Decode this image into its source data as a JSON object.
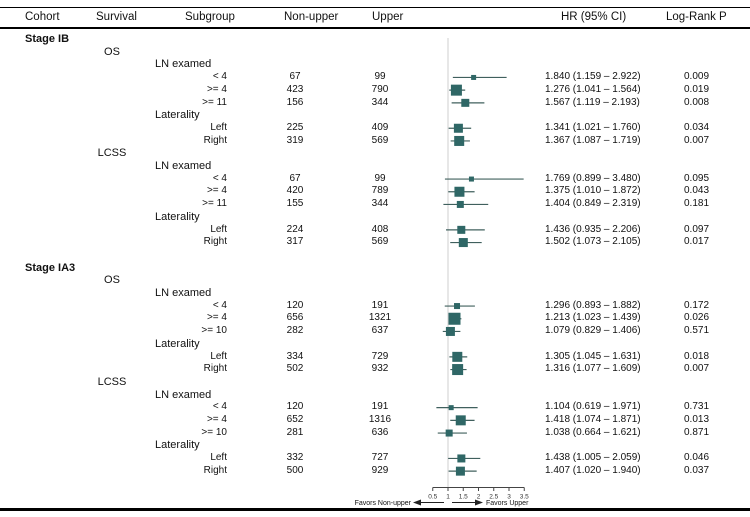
{
  "header": {
    "cohort": "Cohort",
    "survival": "Survival",
    "subgroup": "Subgroup",
    "non_upper": "Non-upper",
    "upper": "Upper",
    "hr_ci": "HR (95% CI)",
    "log_rank_p": "Log-Rank P"
  },
  "axis": {
    "ticks": [
      0.5,
      1,
      1.5,
      2,
      2.5,
      3,
      3.5
    ],
    "tick_labels": [
      "0.5",
      "1",
      "1.5",
      "2",
      "2.5",
      "3",
      "3.5"
    ],
    "favors_left": "Favors Non-upper",
    "favors_right": "Favors Upper"
  },
  "colors": {
    "marker": "#2f6766",
    "whisker": "#40605e",
    "refline": "#cfcfcf",
    "axis": "#444444"
  },
  "chart_data": {
    "type": "forest",
    "xlim": [
      0.5,
      3.5
    ],
    "ref_line": 1.0,
    "xlabel_left": "Favors Non-upper",
    "xlabel_right": "Favors Upper",
    "rows": [
      {
        "t": "cohort",
        "label": "Stage IB"
      },
      {
        "t": "survival",
        "label": "OS"
      },
      {
        "t": "group",
        "label": "LN examed"
      },
      {
        "t": "item",
        "label": "< 4",
        "non_upper": "67",
        "upper": "99",
        "hr": 1.84,
        "lo": 1.159,
        "hi": 2.922,
        "hr_text": "1.840 (1.159 – 2.922)",
        "p": "0.009",
        "size": 5
      },
      {
        "t": "item",
        "label": ">= 4",
        "non_upper": "423",
        "upper": "790",
        "hr": 1.276,
        "lo": 1.041,
        "hi": 1.564,
        "hr_text": "1.276 (1.041 – 1.564)",
        "p": "0.019",
        "size": 11
      },
      {
        "t": "item",
        "label": ">= 11",
        "non_upper": "156",
        "upper": "344",
        "hr": 1.567,
        "lo": 1.119,
        "hi": 2.193,
        "hr_text": "1.567 (1.119 – 2.193)",
        "p": "0.008",
        "size": 8
      },
      {
        "t": "group",
        "label": "Laterality"
      },
      {
        "t": "item",
        "label": "Left",
        "non_upper": "225",
        "upper": "409",
        "hr": 1.341,
        "lo": 1.021,
        "hi": 1.76,
        "hr_text": "1.341 (1.021 – 1.760)",
        "p": "0.034",
        "size": 9
      },
      {
        "t": "item",
        "label": "Right",
        "non_upper": "319",
        "upper": "569",
        "hr": 1.367,
        "lo": 1.087,
        "hi": 1.719,
        "hr_text": "1.367 (1.087 – 1.719)",
        "p": "0.007",
        "size": 10
      },
      {
        "t": "survival",
        "label": "LCSS"
      },
      {
        "t": "group",
        "label": "LN examed"
      },
      {
        "t": "item",
        "label": "< 4",
        "non_upper": "67",
        "upper": "99",
        "hr": 1.769,
        "lo": 0.899,
        "hi": 3.48,
        "hr_text": "1.769 (0.899 – 3.480)",
        "p": "0.095",
        "size": 5
      },
      {
        "t": "item",
        "label": ">= 4",
        "non_upper": "420",
        "upper": "789",
        "hr": 1.375,
        "lo": 1.01,
        "hi": 1.872,
        "hr_text": "1.375 (1.010 – 1.872)",
        "p": "0.043",
        "size": 10
      },
      {
        "t": "item",
        "label": ">= 11",
        "non_upper": "155",
        "upper": "344",
        "hr": 1.404,
        "lo": 0.849,
        "hi": 2.319,
        "hr_text": "1.404 (0.849 – 2.319)",
        "p": "0.181",
        "size": 7
      },
      {
        "t": "group",
        "label": "Laterality"
      },
      {
        "t": "item",
        "label": "Left",
        "non_upper": "224",
        "upper": "408",
        "hr": 1.436,
        "lo": 0.935,
        "hi": 2.206,
        "hr_text": "1.436 (0.935 – 2.206)",
        "p": "0.097",
        "size": 8
      },
      {
        "t": "item",
        "label": "Right",
        "non_upper": "317",
        "upper": "569",
        "hr": 1.502,
        "lo": 1.073,
        "hi": 2.105,
        "hr_text": "1.502 (1.073 – 2.105)",
        "p": "0.017",
        "size": 9
      },
      {
        "t": "spacer"
      },
      {
        "t": "cohort",
        "label": "Stage IA3"
      },
      {
        "t": "survival",
        "label": "OS"
      },
      {
        "t": "group",
        "label": "LN examed"
      },
      {
        "t": "item",
        "label": "< 4",
        "non_upper": "120",
        "upper": "191",
        "hr": 1.296,
        "lo": 0.893,
        "hi": 1.882,
        "hr_text": "1.296 (0.893 – 1.882)",
        "p": "0.172",
        "size": 6
      },
      {
        "t": "item",
        "label": ">= 4",
        "non_upper": "656",
        "upper": "1321",
        "hr": 1.213,
        "lo": 1.023,
        "hi": 1.439,
        "hr_text": "1.213 (1.023 – 1.439)",
        "p": "0.026",
        "size": 12
      },
      {
        "t": "item",
        "label": ">= 10",
        "non_upper": "282",
        "upper": "637",
        "hr": 1.079,
        "lo": 0.829,
        "hi": 1.406,
        "hr_text": "1.079 (0.829 – 1.406)",
        "p": "0.571",
        "size": 9
      },
      {
        "t": "group",
        "label": "Laterality"
      },
      {
        "t": "item",
        "label": "Left",
        "non_upper": "334",
        "upper": "729",
        "hr": 1.305,
        "lo": 1.045,
        "hi": 1.631,
        "hr_text": "1.305 (1.045 – 1.631)",
        "p": "0.018",
        "size": 10
      },
      {
        "t": "item",
        "label": "Right",
        "non_upper": "502",
        "upper": "932",
        "hr": 1.316,
        "lo": 1.077,
        "hi": 1.609,
        "hr_text": "1.316 (1.077 – 1.609)",
        "p": "0.007",
        "size": 11
      },
      {
        "t": "survival",
        "label": "LCSS"
      },
      {
        "t": "group",
        "label": "LN examed"
      },
      {
        "t": "item",
        "label": "< 4",
        "non_upper": "120",
        "upper": "191",
        "hr": 1.104,
        "lo": 0.619,
        "hi": 1.971,
        "hr_text": "1.104 (0.619 – 1.971)",
        "p": "0.731",
        "size": 5
      },
      {
        "t": "item",
        "label": ">= 4",
        "non_upper": "652",
        "upper": "1316",
        "hr": 1.418,
        "lo": 1.074,
        "hi": 1.871,
        "hr_text": "1.418 (1.074 – 1.871)",
        "p": "0.013",
        "size": 10
      },
      {
        "t": "item",
        "label": ">= 10",
        "non_upper": "281",
        "upper": "636",
        "hr": 1.038,
        "lo": 0.664,
        "hi": 1.621,
        "hr_text": "1.038 (0.664 – 1.621)",
        "p": "0.871",
        "size": 7
      },
      {
        "t": "group",
        "label": "Laterality"
      },
      {
        "t": "item",
        "label": "Left",
        "non_upper": "332",
        "upper": "727",
        "hr": 1.438,
        "lo": 1.005,
        "hi": 2.059,
        "hr_text": "1.438 (1.005 – 2.059)",
        "p": "0.046",
        "size": 8
      },
      {
        "t": "item",
        "label": "Right",
        "non_upper": "500",
        "upper": "929",
        "hr": 1.407,
        "lo": 1.02,
        "hi": 1.94,
        "hr_text": "1.407 (1.020 – 1.940)",
        "p": "0.037",
        "size": 9
      }
    ]
  }
}
